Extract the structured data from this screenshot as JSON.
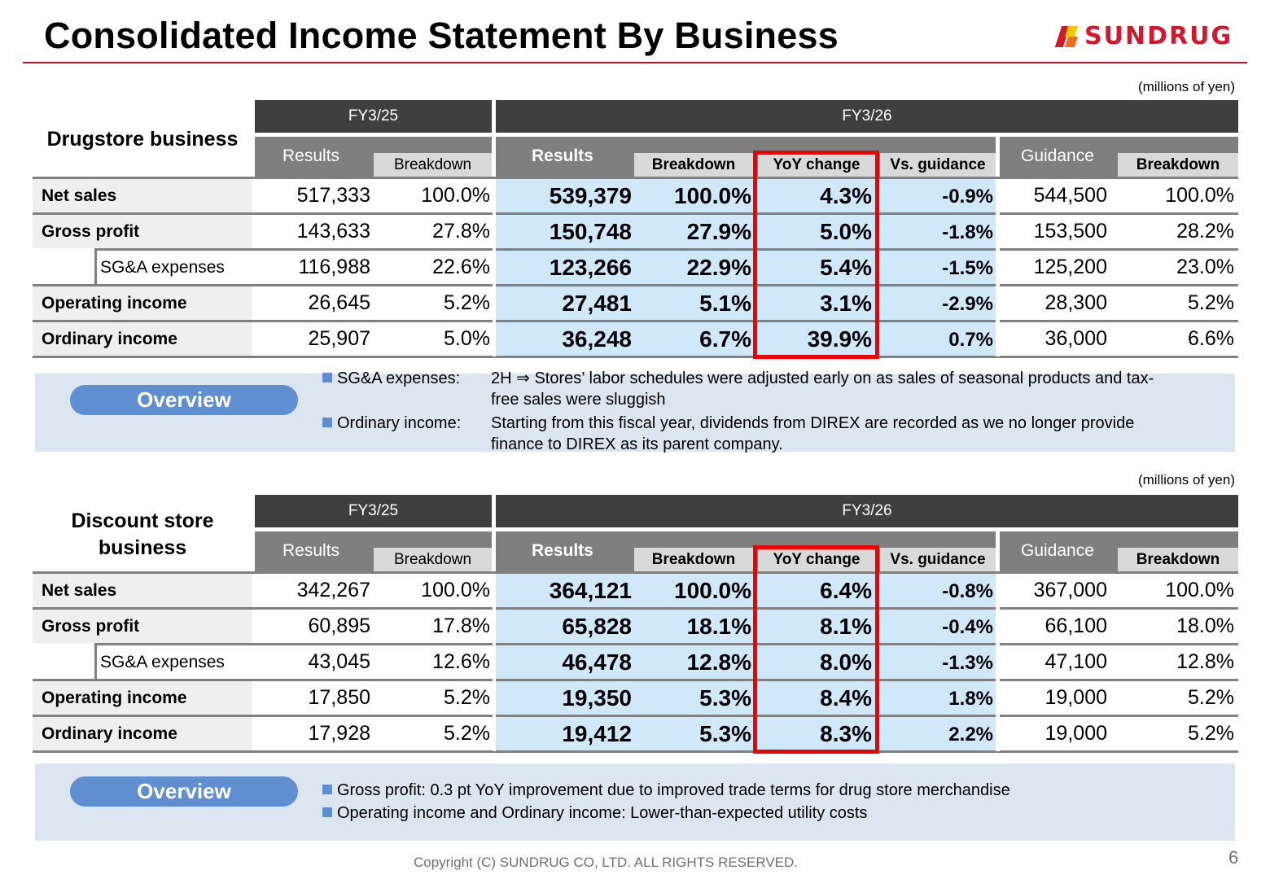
{
  "page": {
    "title": "Consolidated Income Statement By Business",
    "logo_text": "SUNDRUG",
    "footer": "Copyright (C)  SUNDRUG CO, LTD. ALL RIGHTS RESERVED.",
    "page_number": "6",
    "brand_color": "#d6162a",
    "highlight_color": "#cfe9fb",
    "box_color": "#f20000"
  },
  "tables": [
    {
      "title": "Drugstore business",
      "unit": "(millions of yen)",
      "fy_prev": "FY3/25",
      "fy_curr": "FY3/26",
      "hdr": {
        "results": "Results",
        "breakdown": "Breakdown",
        "yoy": "YoY change",
        "vs_guidance": "Vs. guidance",
        "guidance": "Guidance"
      },
      "rows": [
        {
          "label": "Net sales",
          "prev_res": "517,333",
          "prev_bd": "100.0%",
          "res": "539,379",
          "bd": "100.0%",
          "yoy": "4.3%",
          "vg": "-0.9%",
          "guid": "544,500",
          "guid_bd": "100.0%"
        },
        {
          "label": "Gross profit",
          "prev_res": "143,633",
          "prev_bd": "27.8%",
          "res": "150,748",
          "bd": "27.9%",
          "yoy": "5.0%",
          "vg": "-1.8%",
          "guid": "153,500",
          "guid_bd": "28.2%"
        },
        {
          "label": "SG&A expenses",
          "prev_res": "116,988",
          "prev_bd": "22.6%",
          "res": "123,266",
          "bd": "22.9%",
          "yoy": "5.4%",
          "vg": "-1.5%",
          "guid": "125,200",
          "guid_bd": "23.0%"
        },
        {
          "label": "Operating income",
          "prev_res": "26,645",
          "prev_bd": "5.2%",
          "res": "27,481",
          "bd": "5.1%",
          "yoy": "3.1%",
          "vg": "-2.9%",
          "guid": "28,300",
          "guid_bd": "5.2%"
        },
        {
          "label": "Ordinary income",
          "prev_res": "25,907",
          "prev_bd": "5.0%",
          "res": "36,248",
          "bd": "6.7%",
          "yoy": "39.9%",
          "vg": "0.7%",
          "guid": "36,000",
          "guid_bd": "6.6%"
        }
      ],
      "overview": {
        "label": "Overview",
        "l1_head": "SG&A expenses:",
        "l1_a": "2H ⇒ Stores’ labor schedules were adjusted early on as sales of seasonal products and tax-",
        "l1_b": "free sales were sluggish",
        "l2_head": "Ordinary income:",
        "l2_a": "Starting from this fiscal year, dividends from DIREX are recorded as we no longer provide",
        "l2_b": "finance to DIREX as its parent company."
      }
    },
    {
      "title_line1": "Discount store",
      "title_line2": "business",
      "unit": "(millions of yen)",
      "fy_prev": "FY3/25",
      "fy_curr": "FY3/26",
      "hdr": {
        "results": "Results",
        "breakdown": "Breakdown",
        "yoy": "YoY change",
        "vs_guidance": "Vs. guidance",
        "guidance": "Guidance"
      },
      "rows": [
        {
          "label": "Net sales",
          "prev_res": "342,267",
          "prev_bd": "100.0%",
          "res": "364,121",
          "bd": "100.0%",
          "yoy": "6.4%",
          "vg": "-0.8%",
          "guid": "367,000",
          "guid_bd": "100.0%"
        },
        {
          "label": "Gross profit",
          "prev_res": "60,895",
          "prev_bd": "17.8%",
          "res": "65,828",
          "bd": "18.1%",
          "yoy": "8.1%",
          "vg": "-0.4%",
          "guid": "66,100",
          "guid_bd": "18.0%"
        },
        {
          "label": "SG&A expenses",
          "prev_res": "43,045",
          "prev_bd": "12.6%",
          "res": "46,478",
          "bd": "12.8%",
          "yoy": "8.0%",
          "vg": "-1.3%",
          "guid": "47,100",
          "guid_bd": "12.8%"
        },
        {
          "label": "Operating income",
          "prev_res": "17,850",
          "prev_bd": "5.2%",
          "res": "19,350",
          "bd": "5.3%",
          "yoy": "8.4%",
          "vg": "1.8%",
          "guid": "19,000",
          "guid_bd": "5.2%"
        },
        {
          "label": "Ordinary income",
          "prev_res": "17,928",
          "prev_bd": "5.2%",
          "res": "19,412",
          "bd": "5.3%",
          "yoy": "8.3%",
          "vg": "2.2%",
          "guid": "19,000",
          "guid_bd": "5.2%"
        }
      ],
      "overview": {
        "label": "Overview",
        "l1": "Gross profit: 0.3 pt YoY improvement due to improved trade terms for drug store merchandise",
        "l2": "Operating income and Ordinary income: Lower-than-expected utility costs"
      }
    }
  ]
}
